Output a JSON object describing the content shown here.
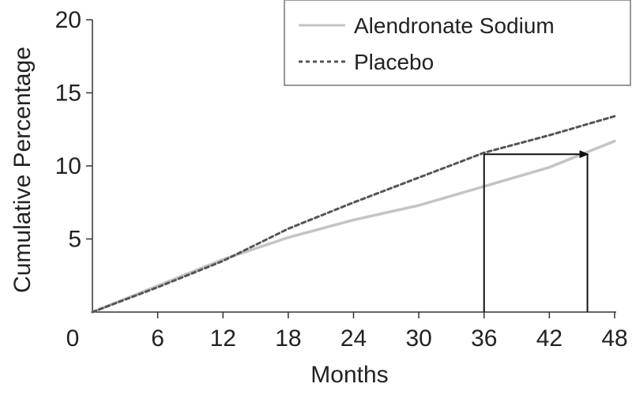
{
  "chart_data": {
    "type": "line",
    "title": "",
    "xlabel": "Months",
    "ylabel": "Cumulative Percentage",
    "xlim": [
      0,
      48
    ],
    "ylim": [
      0,
      20
    ],
    "x_ticks": [
      6,
      12,
      18,
      24,
      30,
      36,
      42,
      48
    ],
    "y_ticks": [
      5,
      10,
      15,
      20
    ],
    "origin_label": "0",
    "grid": false,
    "legend_position": "top-right",
    "series": [
      {
        "name": "Alendronate Sodium",
        "style": "solid",
        "color": "#c4c4c4",
        "x": [
          0,
          6,
          12,
          18,
          24,
          30,
          36,
          42,
          48
        ],
        "y": [
          0,
          1.8,
          3.6,
          5.1,
          6.3,
          7.3,
          8.6,
          9.9,
          11.7
        ]
      },
      {
        "name": "Placebo",
        "style": "dashed",
        "color": "#555555",
        "x": [
          0,
          6,
          12,
          18,
          24,
          30,
          36,
          42,
          48
        ],
        "y": [
          0,
          1.7,
          3.5,
          5.7,
          7.5,
          9.2,
          10.9,
          12.1,
          13.4
        ]
      }
    ],
    "annotation": {
      "x_start": 36,
      "x_end": 45.5,
      "y_level": 10.8,
      "description": "box with arrow"
    }
  }
}
